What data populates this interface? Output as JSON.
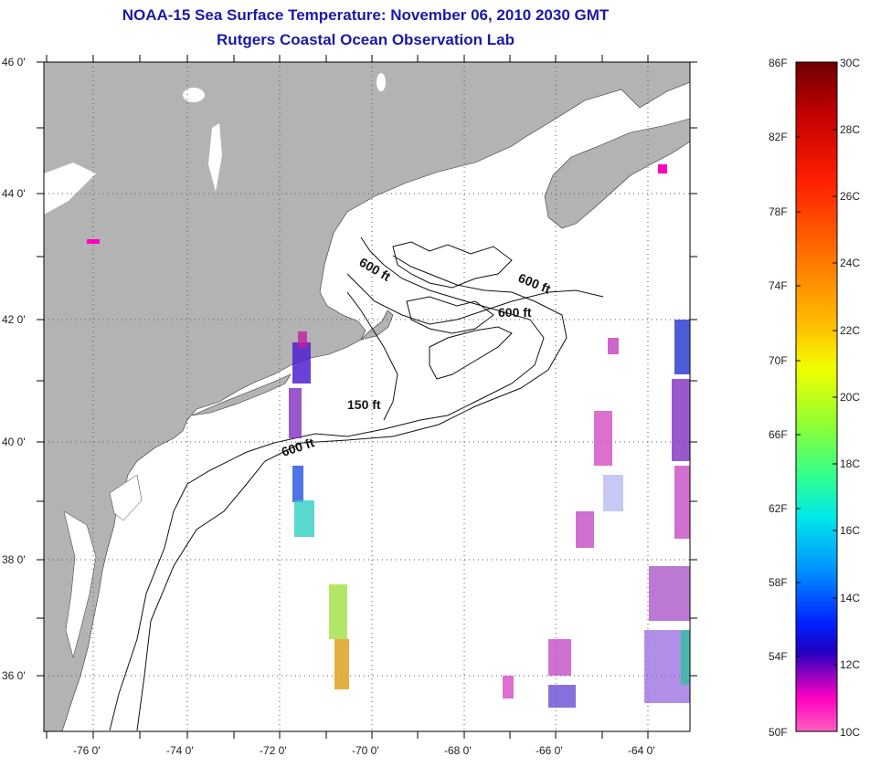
{
  "title": {
    "line1": "NOAA-15 Sea Surface Temperature:  November 06, 2010 2030 GMT",
    "line2": "Rutgers Coastal Ocean Observation Lab"
  },
  "map": {
    "lat_labels": [
      "46 0'",
      "44 0'",
      "42 0'",
      "40 0'",
      "38 0'",
      "36 0'"
    ],
    "lon_labels": [
      "-76 0'",
      "-74 0'",
      "-72 0'",
      "-70 0'",
      "-68 0'",
      "-66 0'",
      "-64 0'"
    ],
    "contour_labels": [
      "600 ft",
      "600 ft",
      "600 ft",
      "150 ft",
      "600 ft"
    ],
    "colors": {
      "land": "#b3b3b3",
      "ocean": "#ffffff",
      "grid": "#555555"
    }
  },
  "colorbar": {
    "fahrenheit_labels": [
      "86F",
      "82F",
      "78F",
      "74F",
      "70F",
      "66F",
      "62F",
      "58F",
      "54F",
      "50F"
    ],
    "celsius_labels": [
      "30C",
      "28C",
      "26C",
      "24C",
      "22C",
      "20C",
      "18C",
      "16C",
      "14C",
      "12C",
      "10C"
    ],
    "gradient_colors": [
      "#6e0000",
      "#c40000",
      "#ff2000",
      "#ff7a00",
      "#ffc400",
      "#f0ff00",
      "#90ff30",
      "#30ff90",
      "#00e8e8",
      "#0090ff",
      "#0020ff",
      "#2000c0",
      "#8000c0",
      "#ff00c0",
      "#ff60c0"
    ]
  }
}
